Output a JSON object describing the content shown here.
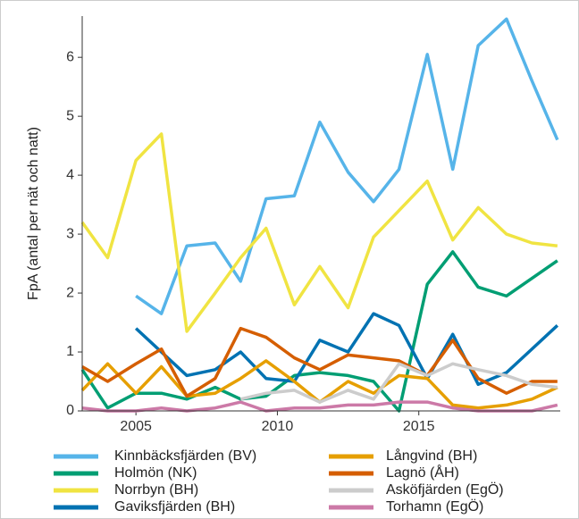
{
  "chart_data": {
    "type": "line",
    "y_label": "FpA (antal per nät och natt)",
    "x": [
      2003.1,
      2004.0,
      2005.0,
      2005.9,
      2006.8,
      2007.8,
      2008.7,
      2009.6,
      2010.6,
      2011.5,
      2012.5,
      2013.4,
      2014.3,
      2015.3,
      2016.2,
      2017.1,
      2018.1,
      2019.0,
      2019.9
    ],
    "xlim": [
      2003.1,
      2020
    ],
    "xticks": [
      2005,
      2010,
      2015
    ],
    "ylim": [
      0,
      6.7
    ],
    "yticks": [
      0,
      1,
      2,
      3,
      4,
      5,
      6
    ],
    "series": [
      {
        "name": "Kinnbäcksfjärden (BV)",
        "color": "#56b4e9",
        "values": [
          null,
          null,
          1.95,
          1.65,
          2.8,
          2.85,
          2.2,
          3.6,
          3.65,
          4.9,
          4.05,
          3.55,
          4.1,
          6.05,
          4.1,
          6.2,
          6.65,
          5.6,
          4.6
        ]
      },
      {
        "name": "Holmön (NK)",
        "color": "#009e73",
        "values": [
          0.7,
          0.05,
          0.3,
          0.3,
          0.2,
          0.4,
          0.2,
          0.25,
          0.6,
          0.65,
          0.6,
          0.5,
          0.0,
          2.15,
          2.7,
          2.1,
          1.95,
          2.25,
          2.55
        ]
      },
      {
        "name": "Norrbyn (BH)",
        "color": "#f0e442",
        "values": [
          3.2,
          2.6,
          4.25,
          4.7,
          1.35,
          2.0,
          2.6,
          3.1,
          1.8,
          2.45,
          1.75,
          2.95,
          3.4,
          3.9,
          2.9,
          3.45,
          3.0,
          2.85,
          2.8
        ]
      },
      {
        "name": "Gaviksfjärden (BH)",
        "color": "#0072b2",
        "values": [
          null,
          null,
          1.4,
          1.0,
          0.6,
          0.7,
          1.0,
          0.55,
          0.5,
          1.2,
          1.0,
          1.65,
          1.45,
          0.55,
          1.3,
          0.45,
          0.65,
          1.05,
          1.45
        ]
      },
      {
        "name": "Långvind (BH)",
        "color": "#e69f00",
        "values": [
          0.35,
          0.8,
          0.3,
          0.75,
          0.25,
          0.3,
          0.55,
          0.85,
          0.5,
          0.15,
          0.5,
          0.3,
          0.6,
          0.55,
          0.1,
          0.05,
          0.1,
          0.2,
          0.4
        ]
      },
      {
        "name": "Lagnö (ÅH)",
        "color": "#d55e00",
        "values": [
          0.75,
          0.5,
          0.8,
          1.05,
          0.25,
          0.55,
          1.4,
          1.25,
          0.9,
          0.7,
          0.95,
          0.9,
          0.85,
          0.6,
          1.2,
          0.55,
          0.3,
          0.5,
          0.5
        ]
      },
      {
        "name": "Asköfjärden (EgÖ)",
        "color": "#cccccc",
        "values": [
          null,
          null,
          null,
          null,
          null,
          null,
          0.2,
          0.3,
          0.35,
          0.15,
          0.35,
          0.2,
          0.8,
          0.6,
          0.8,
          0.7,
          0.6,
          0.45,
          0.4
        ]
      },
      {
        "name": "Torhamn (EgÖ)",
        "color": "#cc79a7",
        "values": [
          0.05,
          0.0,
          0.0,
          0.05,
          0.0,
          0.05,
          0.15,
          0.0,
          0.05,
          0.05,
          0.1,
          0.1,
          0.15,
          0.15,
          0.05,
          0.0,
          0.0,
          0.0,
          0.1
        ]
      }
    ]
  }
}
